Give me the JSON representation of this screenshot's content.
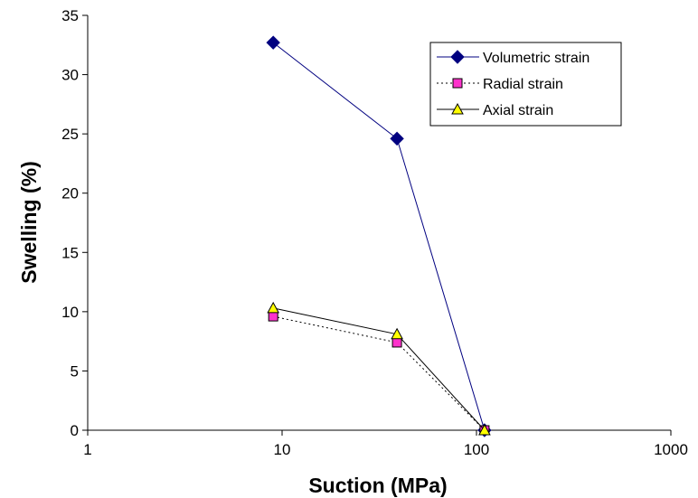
{
  "chart_data": {
    "type": "line",
    "title": "",
    "xlabel": "Suction (MPa)",
    "ylabel": "Swelling (%)",
    "xscale": "log",
    "xlim": [
      1,
      1000
    ],
    "ylim": [
      0,
      35
    ],
    "x_ticks": [
      1,
      10,
      100,
      1000
    ],
    "x_tick_labels": [
      "1",
      "10",
      "100",
      "1000"
    ],
    "y_ticks": [
      0,
      5,
      10,
      15,
      20,
      25,
      30,
      35
    ],
    "y_tick_labels": [
      "0",
      "5",
      "10",
      "15",
      "20",
      "25",
      "30",
      "35"
    ],
    "grid": false,
    "legend_position": "top-right",
    "series": [
      {
        "name": "Volumetric strain",
        "marker": "diamond",
        "line_style": "solid",
        "line_color": "#000080",
        "marker_fill": "#000080",
        "points": [
          {
            "x": 9,
            "y": 32.7
          },
          {
            "x": 39,
            "y": 24.6
          },
          {
            "x": 110,
            "y": 0
          }
        ]
      },
      {
        "name": "Radial strain",
        "marker": "square",
        "line_style": "dotted",
        "line_color": "#000000",
        "marker_fill": "#ff33cc",
        "points": [
          {
            "x": 9,
            "y": 9.6
          },
          {
            "x": 39,
            "y": 7.4
          },
          {
            "x": 110,
            "y": 0
          }
        ]
      },
      {
        "name": "Axial strain",
        "marker": "triangle",
        "line_style": "solid",
        "line_color": "#000000",
        "marker_fill": "#ffff00",
        "points": [
          {
            "x": 9,
            "y": 10.3
          },
          {
            "x": 39,
            "y": 8.1
          },
          {
            "x": 110,
            "y": 0
          }
        ]
      }
    ]
  }
}
